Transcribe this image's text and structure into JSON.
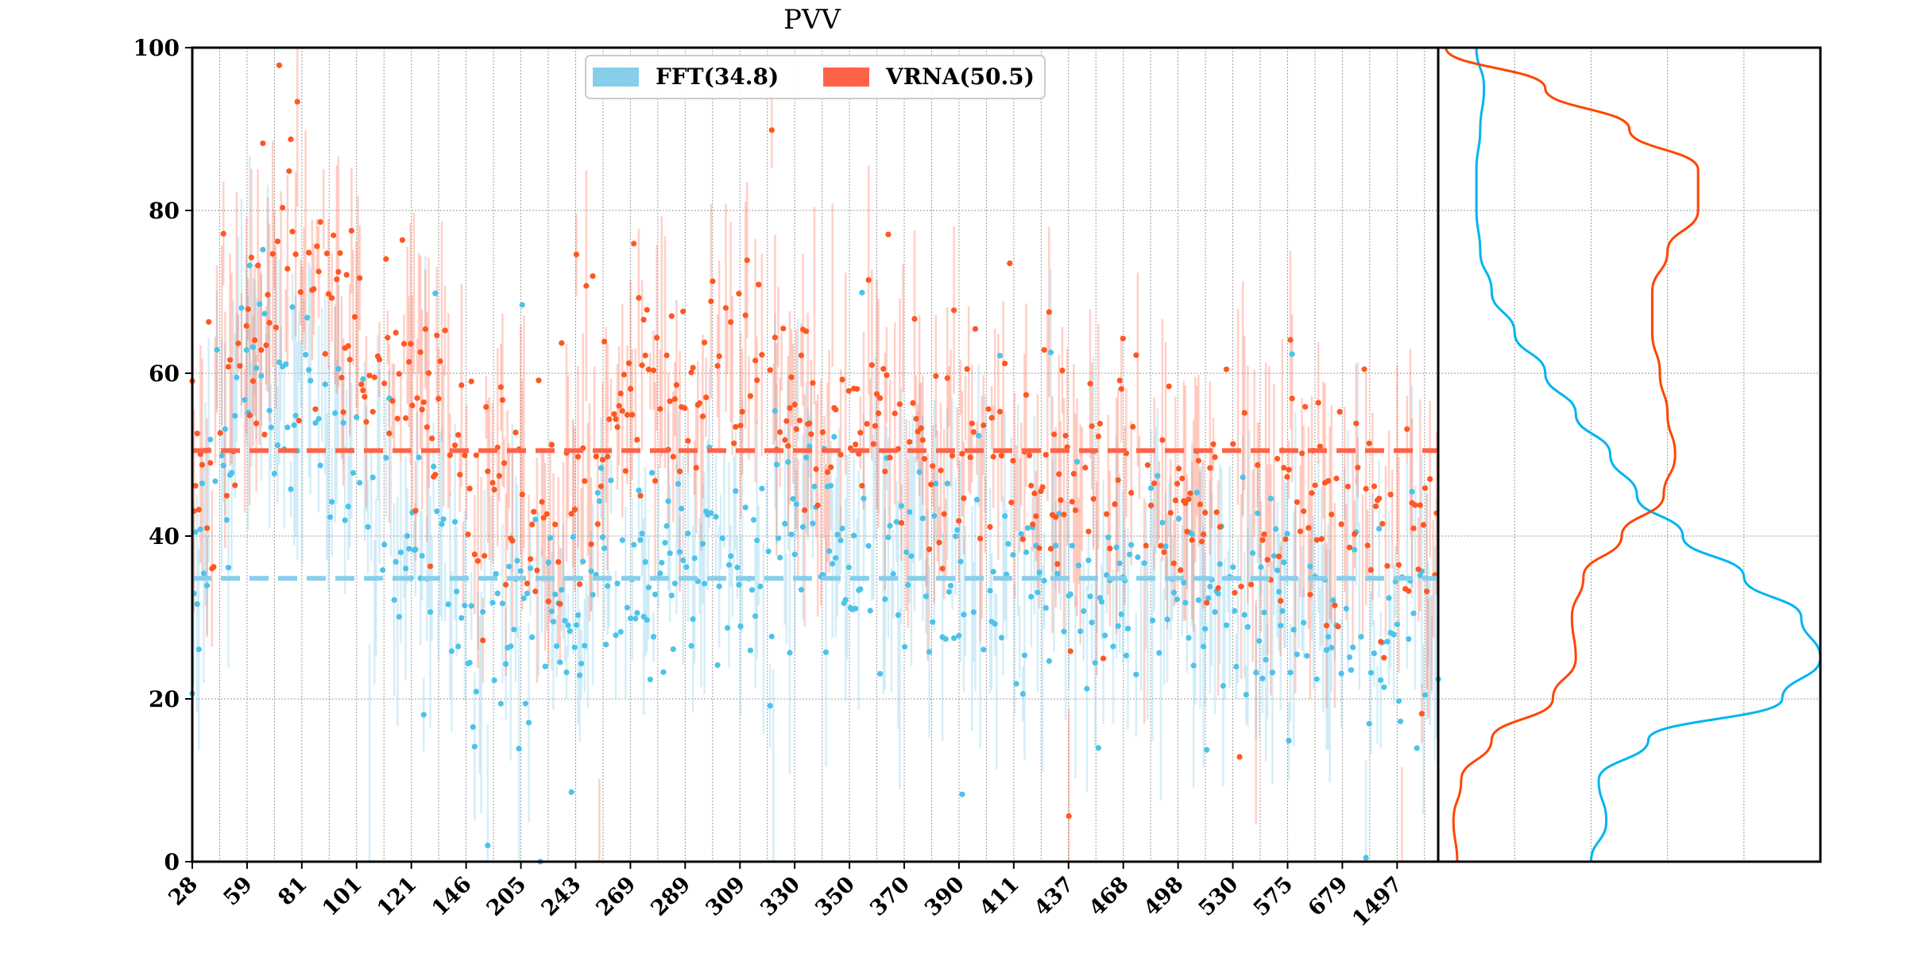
{
  "chart_data": {
    "type": "scatter",
    "title": "PVV",
    "xlabel": "",
    "ylabel": "",
    "ylim": [
      0,
      100
    ],
    "y_ticks": [
      "0",
      "20",
      "40",
      "60",
      "80",
      "100"
    ],
    "x_tick_labels": [
      "28",
      "59",
      "81",
      "101",
      "121",
      "146",
      "205",
      "243",
      "269",
      "289",
      "309",
      "330",
      "350",
      "370",
      "390",
      "411",
      "437",
      "468",
      "498",
      "530",
      "575",
      "679",
      "1497"
    ],
    "grid": true,
    "legend": {
      "placement": "top-center"
    },
    "series": [
      {
        "name": "FFT(34.8)",
        "color": "#4cc3ea",
        "legend_color": "#87ceeb",
        "mean": 34.8,
        "mean_color": "#87ceeb",
        "density_color": "#00b4f0",
        "band": [
          [
            0,
            30
          ],
          [
            15,
            45
          ],
          [
            30,
            65
          ],
          [
            60,
            55
          ],
          [
            100,
            48
          ],
          [
            140,
            40
          ],
          [
            165,
            30
          ],
          [
            200,
            30
          ],
          [
            280,
            35
          ],
          [
            380,
            40
          ],
          [
            480,
            36
          ],
          [
            520,
            33
          ],
          [
            600,
            34
          ],
          [
            700,
            30
          ],
          [
            760,
            28
          ]
        ],
        "density": [
          [
            0,
            0.4
          ],
          [
            5,
            0.44
          ],
          [
            10,
            0.42
          ],
          [
            15,
            0.55
          ],
          [
            20,
            0.9
          ],
          [
            25,
            1.0
          ],
          [
            30,
            0.95
          ],
          [
            35,
            0.8
          ],
          [
            40,
            0.64
          ],
          [
            45,
            0.52
          ],
          [
            50,
            0.45
          ],
          [
            55,
            0.36
          ],
          [
            60,
            0.28
          ],
          [
            65,
            0.2
          ],
          [
            70,
            0.14
          ],
          [
            75,
            0.11
          ],
          [
            80,
            0.1
          ],
          [
            85,
            0.1
          ],
          [
            90,
            0.11
          ],
          [
            95,
            0.12
          ],
          [
            100,
            0.1
          ]
        ]
      },
      {
        "name": "VRNA(50.5)",
        "color": "#ff5722",
        "legend_color": "#ff6347",
        "mean": 50.5,
        "mean_color": "#ff6347",
        "density_color": "#ff4500",
        "band": [
          [
            0,
            45
          ],
          [
            25,
            60
          ],
          [
            60,
            75
          ],
          [
            100,
            65
          ],
          [
            140,
            60
          ],
          [
            175,
            50
          ],
          [
            210,
            40
          ],
          [
            280,
            58
          ],
          [
            340,
            60
          ],
          [
            420,
            52
          ],
          [
            500,
            50
          ],
          [
            540,
            45
          ],
          [
            600,
            45
          ],
          [
            680,
            44
          ],
          [
            760,
            40
          ]
        ],
        "density": [
          [
            0,
            0.05
          ],
          [
            5,
            0.04
          ],
          [
            10,
            0.06
          ],
          [
            15,
            0.14
          ],
          [
            20,
            0.3
          ],
          [
            25,
            0.36
          ],
          [
            30,
            0.35
          ],
          [
            35,
            0.38
          ],
          [
            40,
            0.48
          ],
          [
            45,
            0.59
          ],
          [
            50,
            0.62
          ],
          [
            55,
            0.6
          ],
          [
            60,
            0.58
          ],
          [
            65,
            0.56
          ],
          [
            70,
            0.56
          ],
          [
            75,
            0.6
          ],
          [
            80,
            0.68
          ],
          [
            85,
            0.68
          ],
          [
            90,
            0.5
          ],
          [
            95,
            0.28
          ],
          [
            100,
            0.02
          ]
        ]
      }
    ]
  }
}
